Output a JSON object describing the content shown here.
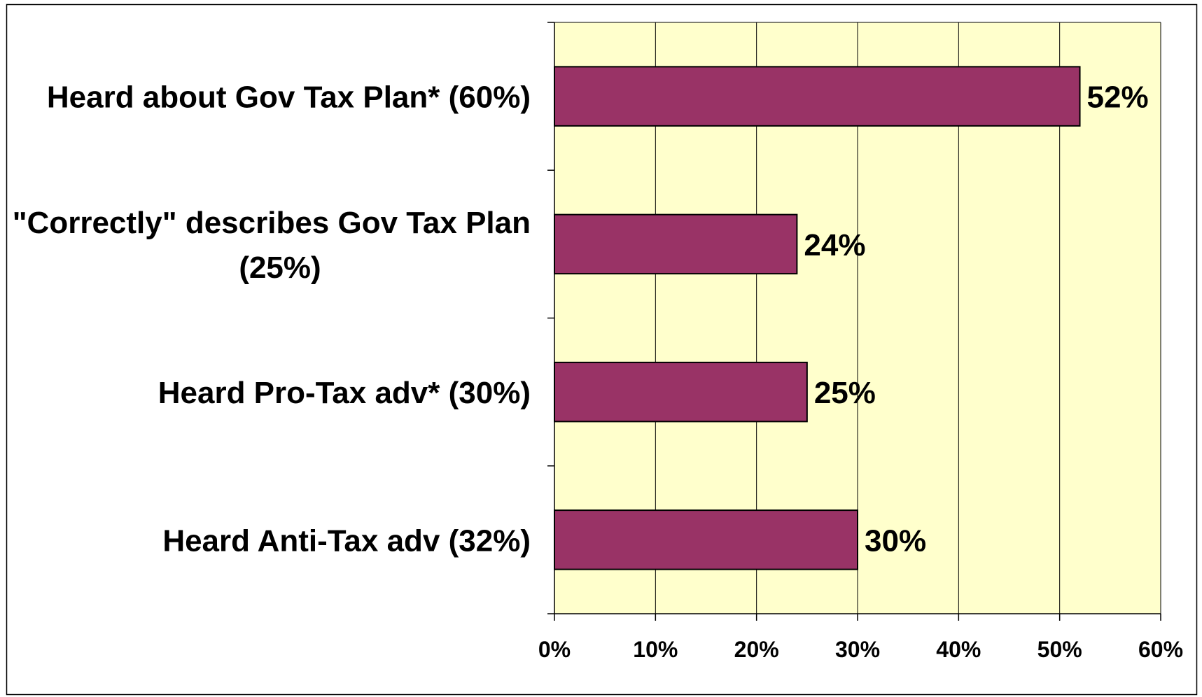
{
  "chart_data": {
    "type": "bar",
    "orientation": "horizontal",
    "title": "",
    "xlabel": "",
    "ylabel": "",
    "categories": [
      "Heard about Gov Tax Plan* (60%)",
      "\"Correctly\" describes Gov Tax Plan (25%)",
      "Heard Pro-Tax adv* (30%)",
      "Heard Anti-Tax adv (32%)"
    ],
    "category_lines": [
      [
        "Heard about Gov Tax Plan* (60%)"
      ],
      [
        "\"Correctly\" describes Gov Tax Plan",
        "(25%)"
      ],
      [
        "Heard Pro-Tax adv* (30%)"
      ],
      [
        "Heard Anti-Tax adv (32%)"
      ]
    ],
    "values": [
      52,
      24,
      25,
      30
    ],
    "value_labels": [
      "52%",
      "24%",
      "25%",
      "30%"
    ],
    "xlim": [
      0,
      60
    ],
    "xticks": [
      0,
      10,
      20,
      30,
      40,
      50,
      60
    ],
    "xtick_labels": [
      "0%",
      "10%",
      "20%",
      "30%",
      "40%",
      "50%",
      "60%"
    ],
    "grid": true,
    "legend": "none",
    "colors": {
      "bar_fill": "#993366",
      "bar_stroke": "#000000",
      "plot_background": "#FFFFCC",
      "gridline": "#000000",
      "frame": "#000000"
    }
  }
}
